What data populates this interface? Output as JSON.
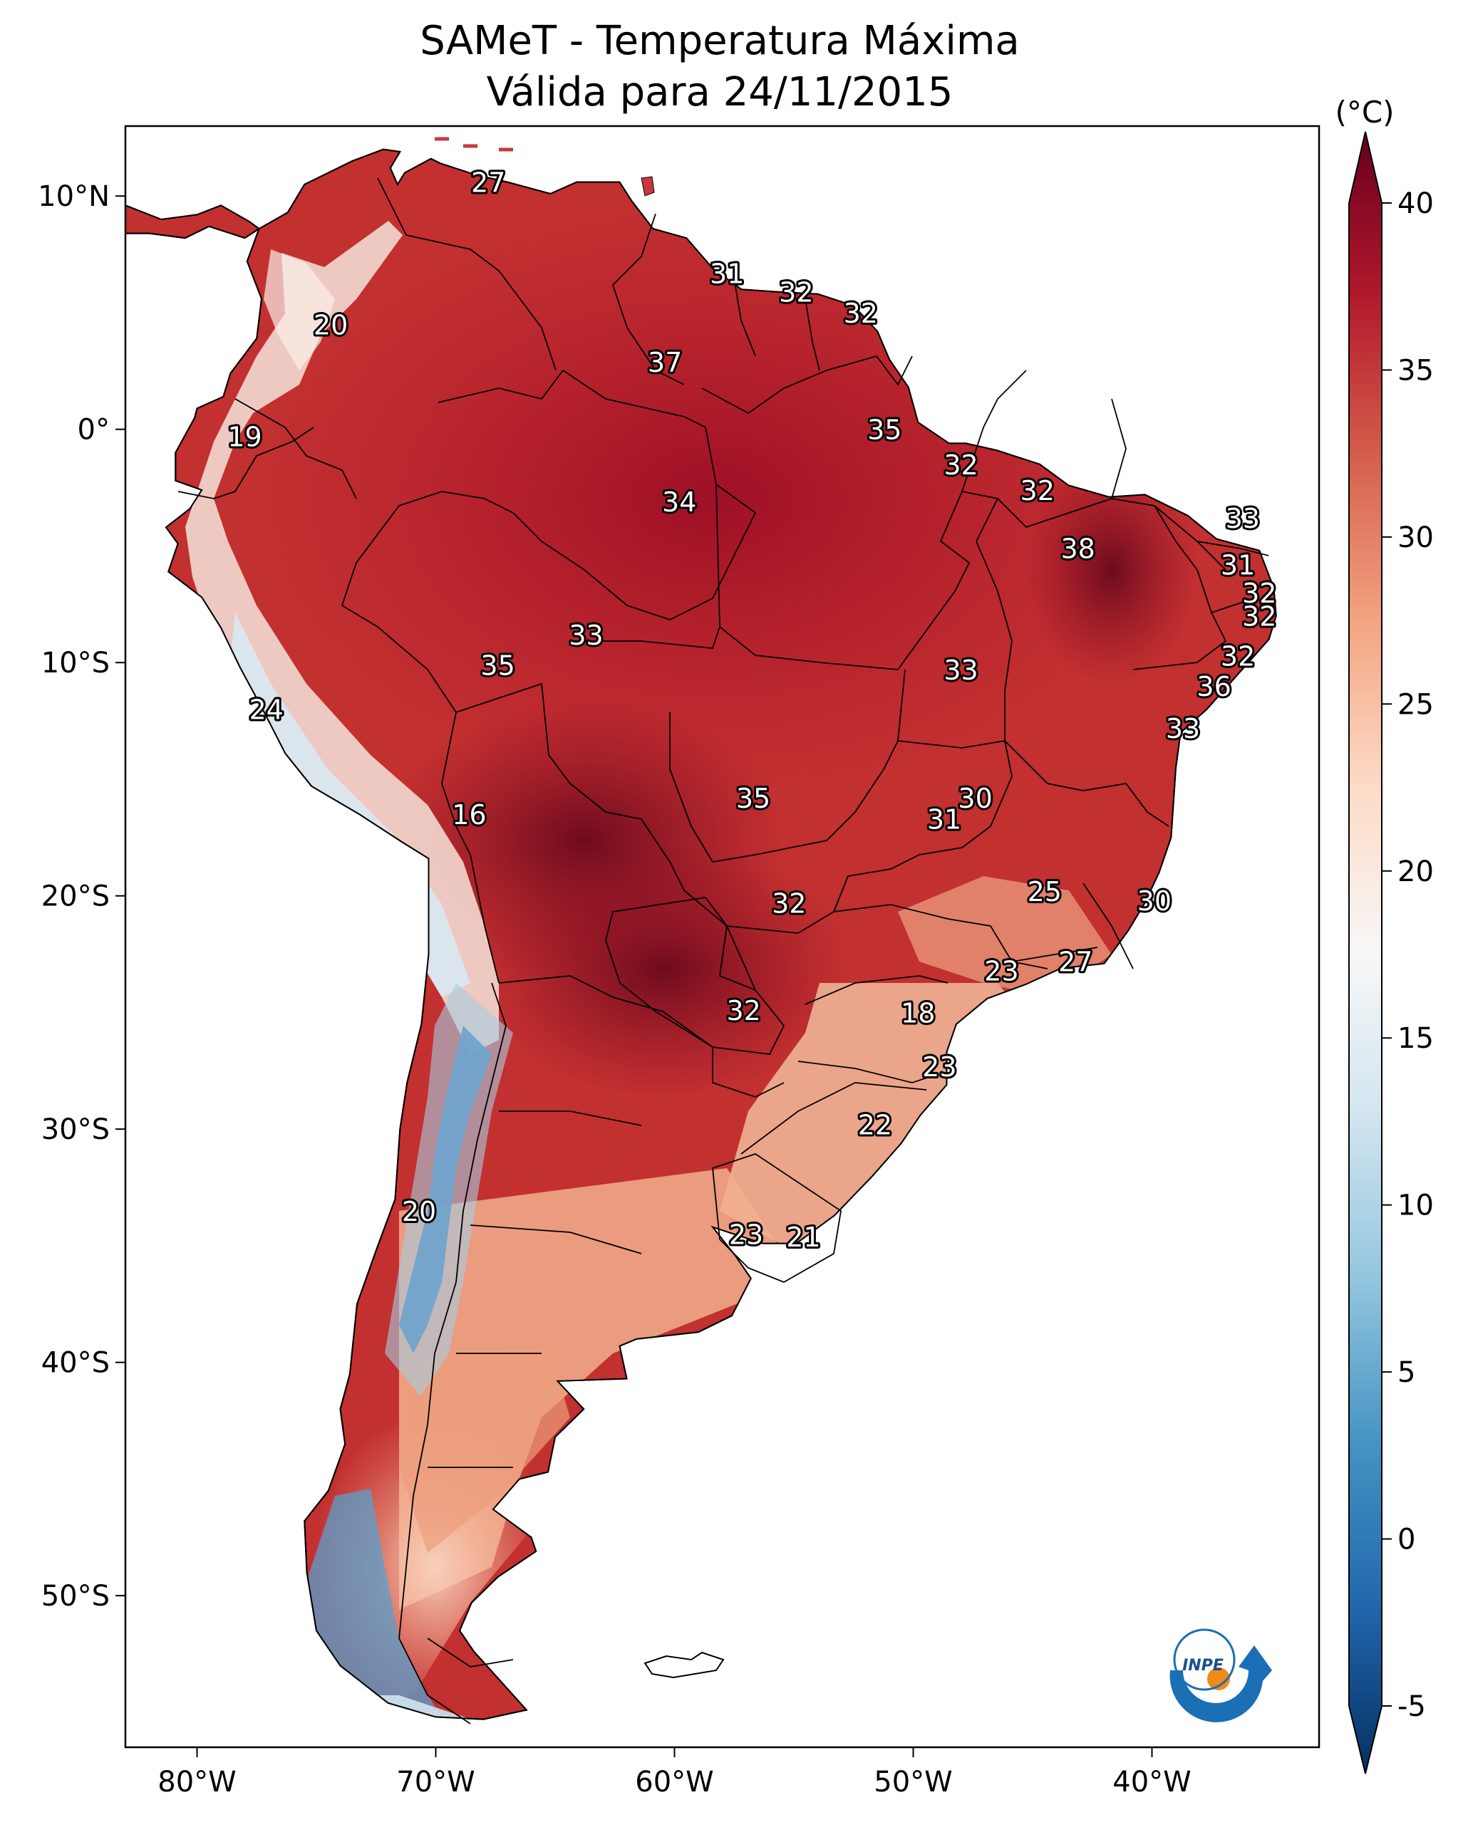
{
  "title": {
    "line1": "SAMeT - Temperatura Máxima",
    "line2": "Válida para 24/11/2015"
  },
  "colorbar": {
    "unit": "(°C)",
    "ticks": [
      {
        "value": 40,
        "label": "40"
      },
      {
        "value": 35,
        "label": "35"
      },
      {
        "value": 30,
        "label": "30"
      },
      {
        "value": 25,
        "label": "25"
      },
      {
        "value": 20,
        "label": "20"
      },
      {
        "value": 15,
        "label": "15"
      },
      {
        "value": 10,
        "label": "10"
      },
      {
        "value": 5,
        "label": "5"
      },
      {
        "value": 0,
        "label": "0"
      },
      {
        "value": -5,
        "label": "-5"
      }
    ],
    "colors": [
      "#053061",
      "#2166ac",
      "#4393c3",
      "#92c5de",
      "#d1e5f0",
      "#f7f7f7",
      "#fddbc7",
      "#f4a582",
      "#d6604d",
      "#b2182b",
      "#67001f"
    ]
  },
  "axes": {
    "lon_ticks": [
      {
        "value": -80,
        "label": "80°W"
      },
      {
        "value": -70,
        "label": "70°W"
      },
      {
        "value": -60,
        "label": "60°W"
      },
      {
        "value": -50,
        "label": "50°W"
      },
      {
        "value": -40,
        "label": "40°W"
      }
    ],
    "lat_ticks": [
      {
        "value": 10,
        "label": "10°N"
      },
      {
        "value": 0,
        "label": "0°"
      },
      {
        "value": -10,
        "label": "10°S"
      },
      {
        "value": -20,
        "label": "20°S"
      },
      {
        "value": -30,
        "label": "30°S"
      },
      {
        "value": -40,
        "label": "40°S"
      },
      {
        "value": -50,
        "label": "50°S"
      }
    ],
    "lon_range": [
      -83,
      -33
    ],
    "lat_range": [
      -56.5,
      13
    ]
  },
  "labels": [
    {
      "lon": -67.8,
      "lat": 10.6,
      "text": "27"
    },
    {
      "lon": -57.8,
      "lat": 6.7,
      "text": "31"
    },
    {
      "lon": -54.9,
      "lat": 5.9,
      "text": "32"
    },
    {
      "lon": -52.2,
      "lat": 5.0,
      "text": "32"
    },
    {
      "lon": -74.4,
      "lat": 4.5,
      "text": "20"
    },
    {
      "lon": -60.4,
      "lat": 2.9,
      "text": "37"
    },
    {
      "lon": -51.2,
      "lat": 0.0,
      "text": "35"
    },
    {
      "lon": -78.0,
      "lat": -0.3,
      "text": "19"
    },
    {
      "lon": -48.0,
      "lat": -1.5,
      "text": "32"
    },
    {
      "lon": -44.8,
      "lat": -2.6,
      "text": "32"
    },
    {
      "lon": -59.8,
      "lat": -3.1,
      "text": "34"
    },
    {
      "lon": -36.2,
      "lat": -3.8,
      "text": "33"
    },
    {
      "lon": -43.1,
      "lat": -5.1,
      "text": "38"
    },
    {
      "lon": -36.4,
      "lat": -5.8,
      "text": "31"
    },
    {
      "lon": -35.5,
      "lat": -7.0,
      "text": "32"
    },
    {
      "lon": -35.5,
      "lat": -8.0,
      "text": "32"
    },
    {
      "lon": -63.7,
      "lat": -8.8,
      "text": "33"
    },
    {
      "lon": -67.4,
      "lat": -10.1,
      "text": "35"
    },
    {
      "lon": -48.0,
      "lat": -10.3,
      "text": "33"
    },
    {
      "lon": -36.4,
      "lat": -9.7,
      "text": "32"
    },
    {
      "lon": -37.4,
      "lat": -11.0,
      "text": "36"
    },
    {
      "lon": -77.1,
      "lat": -12.0,
      "text": "24"
    },
    {
      "lon": -38.7,
      "lat": -12.8,
      "text": "33"
    },
    {
      "lon": -56.7,
      "lat": -15.8,
      "text": "35"
    },
    {
      "lon": -47.4,
      "lat": -15.8,
      "text": "30"
    },
    {
      "lon": -48.7,
      "lat": -16.7,
      "text": "31"
    },
    {
      "lon": -68.6,
      "lat": -16.5,
      "text": "16"
    },
    {
      "lon": -44.5,
      "lat": -19.8,
      "text": "25"
    },
    {
      "lon": -39.9,
      "lat": -20.2,
      "text": "30"
    },
    {
      "lon": -55.2,
      "lat": -20.3,
      "text": "32"
    },
    {
      "lon": -43.2,
      "lat": -22.8,
      "text": "27"
    },
    {
      "lon": -46.3,
      "lat": -23.2,
      "text": "23"
    },
    {
      "lon": -49.8,
      "lat": -25.0,
      "text": "18"
    },
    {
      "lon": -57.1,
      "lat": -24.9,
      "text": "32"
    },
    {
      "lon": -48.9,
      "lat": -27.3,
      "text": "23"
    },
    {
      "lon": -51.6,
      "lat": -29.8,
      "text": "22"
    },
    {
      "lon": -70.7,
      "lat": -33.5,
      "text": "20"
    },
    {
      "lon": -57.0,
      "lat": -34.5,
      "text": "23"
    },
    {
      "lon": -54.6,
      "lat": -34.6,
      "text": "21"
    }
  ],
  "logo": {
    "text": "INPE"
  }
}
